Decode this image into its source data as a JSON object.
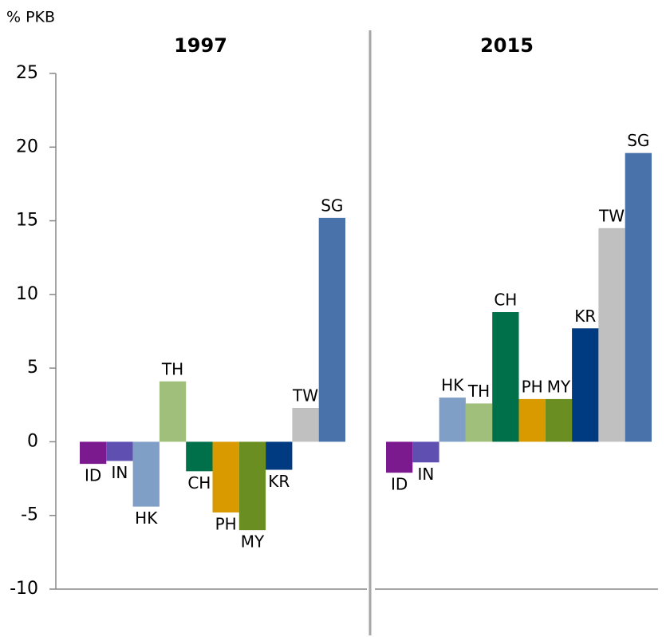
{
  "chart_data": {
    "type": "bar",
    "y_label": "% PKB",
    "categories": [
      "ID",
      "IN",
      "HK",
      "TH",
      "CH",
      "PH",
      "MY",
      "KR",
      "TW",
      "SG"
    ],
    "colors": [
      "#7b1a8f",
      "#5e4fb0",
      "#7f9fc6",
      "#9fbf7a",
      "#00704a",
      "#d99a00",
      "#6b8e23",
      "#003a80",
      "#c0c0c0",
      "#4a72aa"
    ],
    "series": [
      {
        "name": "1997",
        "values": [
          -1.5,
          -1.3,
          -4.4,
          4.1,
          -2.0,
          -4.8,
          -6.0,
          -1.9,
          2.3,
          15.2
        ]
      },
      {
        "name": "2015",
        "values": [
          -2.1,
          -1.4,
          3.0,
          2.6,
          8.8,
          2.9,
          2.9,
          7.7,
          14.5,
          19.6
        ]
      }
    ],
    "ylim": [
      -10,
      25
    ],
    "yticks": [
      -10,
      -5,
      0,
      5,
      10,
      15,
      20,
      25
    ]
  }
}
